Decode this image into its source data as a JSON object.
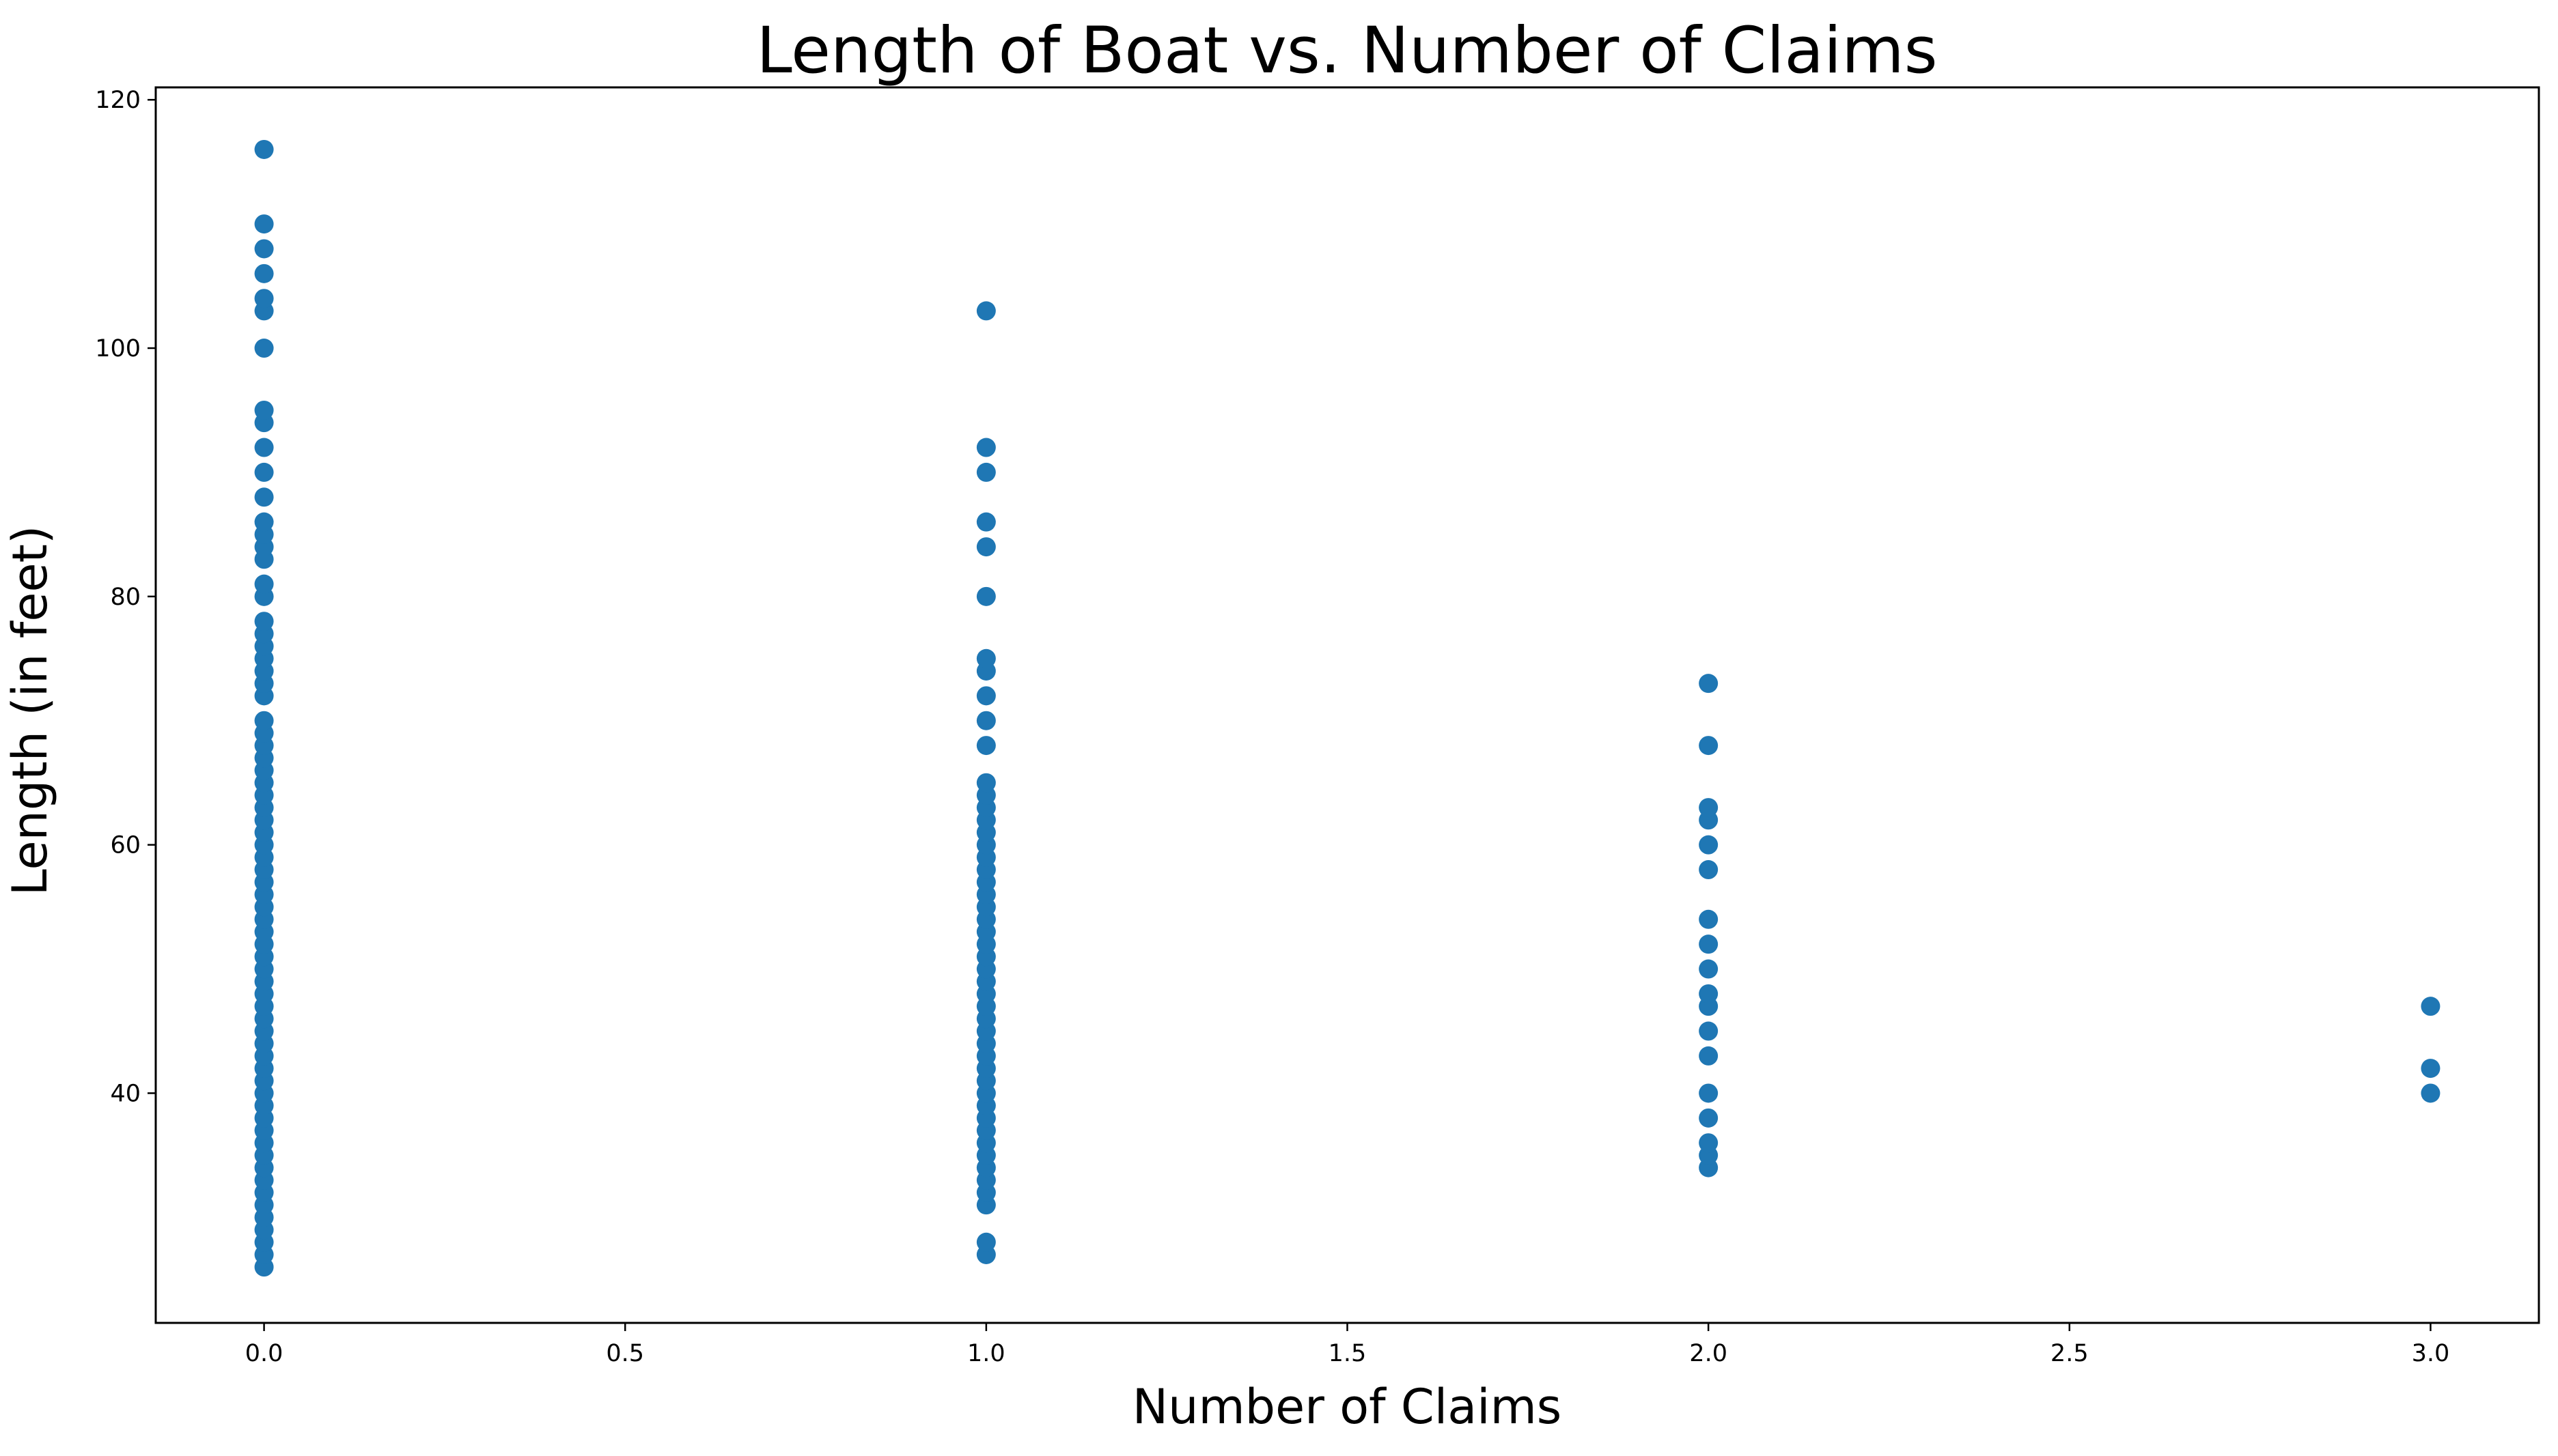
{
  "chart_data": {
    "type": "scatter",
    "title": "Length of Boat vs. Number of Claims",
    "xlabel": "Number of Claims",
    "ylabel": "Length (in feet)",
    "xlim": [
      -0.15,
      3.15
    ],
    "ylim": [
      21.5,
      121
    ],
    "xticks": [
      0.0,
      0.5,
      1.0,
      1.5,
      2.0,
      2.5,
      3.0
    ],
    "xtick_labels": [
      "0.0",
      "0.5",
      "1.0",
      "1.5",
      "2.0",
      "2.5",
      "3.0"
    ],
    "yticks": [
      40,
      60,
      80,
      100,
      120
    ],
    "ytick_labels": [
      "40",
      "60",
      "80",
      "100",
      "120"
    ],
    "grid": false,
    "marker_color": "#1f77b4",
    "series": [
      {
        "points": [
          [
            0,
            26
          ],
          [
            0,
            27
          ],
          [
            0,
            28
          ],
          [
            0,
            29
          ],
          [
            0,
            30
          ],
          [
            0,
            31
          ],
          [
            0,
            32
          ],
          [
            0,
            33
          ],
          [
            0,
            34
          ],
          [
            0,
            35
          ],
          [
            0,
            36
          ],
          [
            0,
            37
          ],
          [
            0,
            38
          ],
          [
            0,
            39
          ],
          [
            0,
            40
          ],
          [
            0,
            41
          ],
          [
            0,
            42
          ],
          [
            0,
            43
          ],
          [
            0,
            44
          ],
          [
            0,
            45
          ],
          [
            0,
            46
          ],
          [
            0,
            47
          ],
          [
            0,
            48
          ],
          [
            0,
            49
          ],
          [
            0,
            50
          ],
          [
            0,
            51
          ],
          [
            0,
            52
          ],
          [
            0,
            53
          ],
          [
            0,
            54
          ],
          [
            0,
            55
          ],
          [
            0,
            56
          ],
          [
            0,
            57
          ],
          [
            0,
            58
          ],
          [
            0,
            59
          ],
          [
            0,
            60
          ],
          [
            0,
            61
          ],
          [
            0,
            62
          ],
          [
            0,
            63
          ],
          [
            0,
            64
          ],
          [
            0,
            65
          ],
          [
            0,
            66
          ],
          [
            0,
            67
          ],
          [
            0,
            68
          ],
          [
            0,
            69
          ],
          [
            0,
            70
          ],
          [
            0,
            72
          ],
          [
            0,
            73
          ],
          [
            0,
            74
          ],
          [
            0,
            75
          ],
          [
            0,
            76
          ],
          [
            0,
            77
          ],
          [
            0,
            78
          ],
          [
            0,
            80
          ],
          [
            0,
            81
          ],
          [
            0,
            83
          ],
          [
            0,
            84
          ],
          [
            0,
            85
          ],
          [
            0,
            86
          ],
          [
            0,
            88
          ],
          [
            0,
            90
          ],
          [
            0,
            92
          ],
          [
            0,
            94
          ],
          [
            0,
            95
          ],
          [
            0,
            100
          ],
          [
            0,
            103
          ],
          [
            0,
            104
          ],
          [
            0,
            106
          ],
          [
            0,
            108
          ],
          [
            0,
            110
          ],
          [
            0,
            116
          ],
          [
            1,
            27
          ],
          [
            1,
            28
          ],
          [
            1,
            31
          ],
          [
            1,
            32
          ],
          [
            1,
            33
          ],
          [
            1,
            34
          ],
          [
            1,
            35
          ],
          [
            1,
            36
          ],
          [
            1,
            37
          ],
          [
            1,
            38
          ],
          [
            1,
            39
          ],
          [
            1,
            40
          ],
          [
            1,
            41
          ],
          [
            1,
            42
          ],
          [
            1,
            43
          ],
          [
            1,
            44
          ],
          [
            1,
            45
          ],
          [
            1,
            46
          ],
          [
            1,
            47
          ],
          [
            1,
            48
          ],
          [
            1,
            49
          ],
          [
            1,
            50
          ],
          [
            1,
            51
          ],
          [
            1,
            52
          ],
          [
            1,
            53
          ],
          [
            1,
            54
          ],
          [
            1,
            55
          ],
          [
            1,
            56
          ],
          [
            1,
            57
          ],
          [
            1,
            58
          ],
          [
            1,
            59
          ],
          [
            1,
            60
          ],
          [
            1,
            61
          ],
          [
            1,
            62
          ],
          [
            1,
            63
          ],
          [
            1,
            64
          ],
          [
            1,
            65
          ],
          [
            1,
            68
          ],
          [
            1,
            70
          ],
          [
            1,
            72
          ],
          [
            1,
            74
          ],
          [
            1,
            75
          ],
          [
            1,
            80
          ],
          [
            1,
            84
          ],
          [
            1,
            86
          ],
          [
            1,
            90
          ],
          [
            1,
            92
          ],
          [
            1,
            103
          ],
          [
            2,
            34
          ],
          [
            2,
            35
          ],
          [
            2,
            36
          ],
          [
            2,
            38
          ],
          [
            2,
            40
          ],
          [
            2,
            43
          ],
          [
            2,
            45
          ],
          [
            2,
            47
          ],
          [
            2,
            48
          ],
          [
            2,
            50
          ],
          [
            2,
            52
          ],
          [
            2,
            54
          ],
          [
            2,
            58
          ],
          [
            2,
            60
          ],
          [
            2,
            62
          ],
          [
            2,
            63
          ],
          [
            2,
            68
          ],
          [
            2,
            73
          ],
          [
            3,
            40
          ],
          [
            3,
            42
          ],
          [
            3,
            47
          ]
        ]
      }
    ]
  }
}
